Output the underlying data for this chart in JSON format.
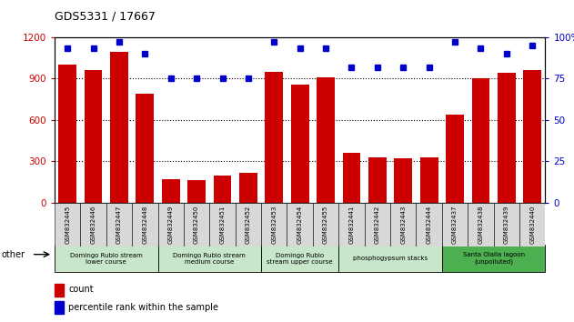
{
  "title": "GDS5331 / 17667",
  "samples": [
    "GSM832445",
    "GSM832446",
    "GSM832447",
    "GSM832448",
    "GSM832449",
    "GSM832450",
    "GSM832451",
    "GSM832452",
    "GSM832453",
    "GSM832454",
    "GSM832455",
    "GSM832441",
    "GSM832442",
    "GSM832443",
    "GSM832444",
    "GSM832437",
    "GSM832438",
    "GSM832439",
    "GSM832440"
  ],
  "counts": [
    1000,
    960,
    1090,
    790,
    170,
    165,
    195,
    215,
    945,
    855,
    910,
    360,
    330,
    320,
    330,
    640,
    900,
    940,
    960
  ],
  "percentiles": [
    93,
    93,
    97,
    90,
    75,
    75,
    75,
    75,
    97,
    93,
    93,
    82,
    82,
    82,
    82,
    97,
    93,
    90,
    95
  ],
  "groups": [
    {
      "label": "Domingo Rubio stream\nlower course",
      "start": 0,
      "end": 4,
      "color": "#c8e6c9"
    },
    {
      "label": "Domingo Rubio stream\nmedium course",
      "start": 4,
      "end": 8,
      "color": "#c8e6c9"
    },
    {
      "label": "Domingo Rubio\nstream upper course",
      "start": 8,
      "end": 11,
      "color": "#c8e6c9"
    },
    {
      "label": "phosphogypsum stacks",
      "start": 11,
      "end": 15,
      "color": "#c8e6c9"
    },
    {
      "label": "Santa Olalla lagoon\n(unpolluted)",
      "start": 15,
      "end": 19,
      "color": "#4caf50"
    }
  ],
  "bar_color": "#cc0000",
  "marker_color": "#0000cc",
  "ylim_left": [
    0,
    1200
  ],
  "ylim_right": [
    0,
    100
  ],
  "yticks_left": [
    0,
    300,
    600,
    900,
    1200
  ],
  "ytick_labels_left": [
    "0",
    "300",
    "600",
    "900",
    "1200"
  ],
  "yticks_right": [
    0,
    25,
    50,
    75,
    100
  ],
  "ytick_labels_right": [
    "0",
    "25",
    "50",
    "75",
    "100%"
  ],
  "left_tick_color": "#cc0000",
  "right_tick_color": "#0000cc",
  "legend_count_label": "count",
  "legend_pct_label": "percentile rank within the sample",
  "other_label": "other",
  "grid_lines": [
    300,
    600,
    900
  ],
  "light_green": "#c8e6c9",
  "dark_green": "#4caf50"
}
